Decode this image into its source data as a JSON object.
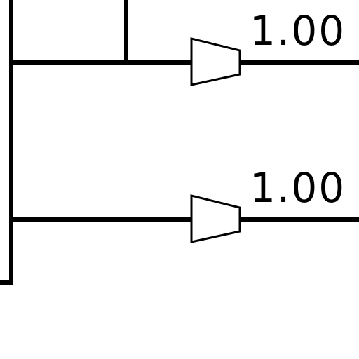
{
  "diagram": {
    "elements": [
      {
        "type": "amplifier",
        "gain_label": "1.00"
      },
      {
        "type": "amplifier",
        "gain_label": "1.00"
      }
    ],
    "colors": {
      "line": "#000000",
      "background": "#ffffff",
      "amplifier_fill": "#ffffff"
    }
  }
}
